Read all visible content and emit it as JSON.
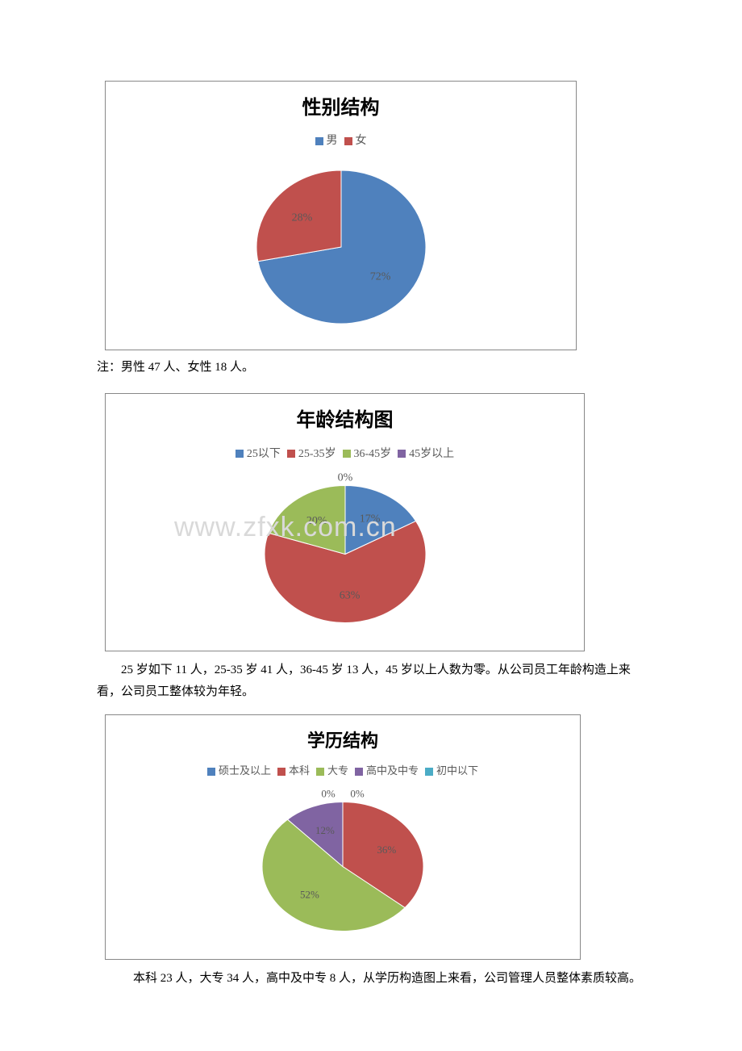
{
  "watermark": "www.zfxk.com.cn",
  "chart1": {
    "type": "pie",
    "title": "性别结构",
    "title_fontsize": 24,
    "legend_fontsize": 14,
    "label_fontsize": 14,
    "label_color": "#595959",
    "background_color": "#ffffff",
    "border_color": "#888888",
    "series": [
      {
        "label": "男",
        "value": 72,
        "display": "72%",
        "color": "#4f81bd"
      },
      {
        "label": "女",
        "value": 28,
        "display": "28%",
        "color": "#c0504d"
      }
    ],
    "pie_radius_x": 105,
    "pie_radius_y": 95,
    "start_angle_deg": -90
  },
  "note1": "注：男性 47 人、女性 18 人。",
  "chart2": {
    "type": "pie",
    "title": "年龄结构图",
    "title_fontsize": 24,
    "legend_fontsize": 14,
    "label_fontsize": 14,
    "label_color": "#595959",
    "background_color": "#ffffff",
    "border_color": "#888888",
    "series": [
      {
        "label": "25以下",
        "value": 17,
        "display": "17%",
        "color": "#4f81bd"
      },
      {
        "label": "25-35岁",
        "value": 63,
        "display": "63%",
        "color": "#c0504d"
      },
      {
        "label": "36-45岁",
        "value": 20,
        "display": "20%",
        "color": "#9bbb59"
      },
      {
        "label": "45岁以上",
        "value": 0,
        "display": "0%",
        "color": "#8064a2"
      }
    ],
    "pie_radius_x": 100,
    "pie_radius_y": 85,
    "start_angle_deg": -90
  },
  "para2": "25 岁如下 11 人，25-35 岁 41 人，36-45 岁 13 人，45 岁以上人数为零。从公司员工年龄构造上来看，公司员工整体较为年轻。",
  "chart3": {
    "type": "pie",
    "title": "学历结构",
    "title_fontsize": 22,
    "legend_fontsize": 13,
    "label_fontsize": 13,
    "label_color": "#595959",
    "background_color": "#ffffff",
    "border_color": "#888888",
    "series": [
      {
        "label": "硕士及以上",
        "value": 0,
        "display": "0%",
        "color": "#4f81bd"
      },
      {
        "label": "本科",
        "value": 36,
        "display": "36%",
        "color": "#c0504d"
      },
      {
        "label": "大专",
        "value": 52,
        "display": "52%",
        "color": "#9bbb59"
      },
      {
        "label": "高中及中专",
        "value": 12,
        "display": "12%",
        "color": "#8064a2"
      },
      {
        "label": "初中以下",
        "value": 0,
        "display": "0%",
        "color": "#4bacc6"
      }
    ],
    "pie_radius_x": 100,
    "pie_radius_y": 80,
    "start_angle_deg": -90
  },
  "para3": "本科 23 人，大专 34 人，高中及中专 8 人，从学历构造图上来看，公司管理人员整体素质较高。"
}
